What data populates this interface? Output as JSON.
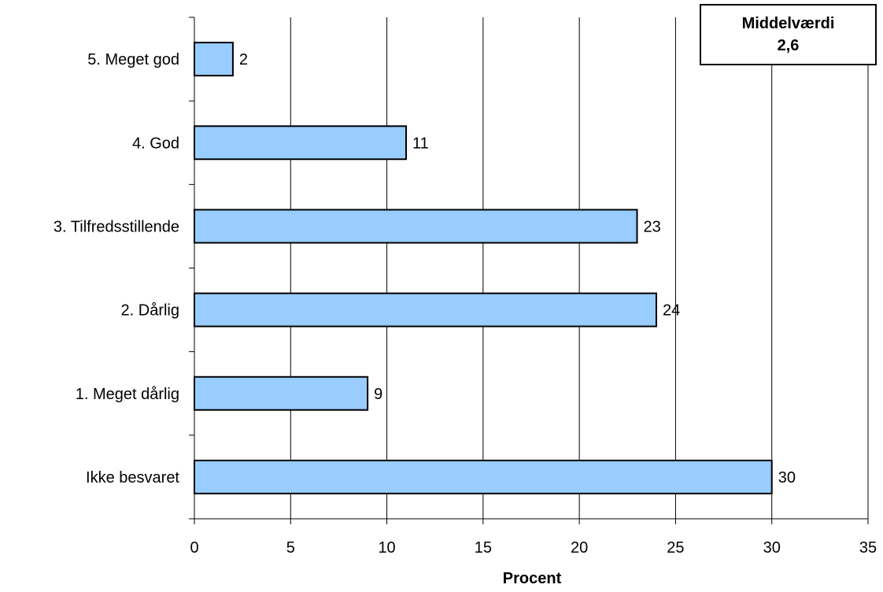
{
  "chart_data": {
    "type": "bar",
    "orientation": "horizontal",
    "categories": [
      "5. Meget god",
      "4. God",
      "3. Tilfredsstillende",
      "2. Dårlig",
      "1. Meget dårlig",
      "Ikke besvaret"
    ],
    "values": [
      2,
      11,
      23,
      24,
      9,
      30
    ],
    "xlabel": "Procent",
    "ylabel": "",
    "xlim": [
      0,
      35
    ],
    "xticks": [
      "0",
      "5",
      "10",
      "15",
      "20",
      "25",
      "30",
      "35"
    ],
    "grid": "vertical",
    "bar_color": "#99ccff",
    "bar_edge_color": "#000000"
  },
  "annotation": {
    "title": "Middelværdi",
    "value": "2,6"
  }
}
